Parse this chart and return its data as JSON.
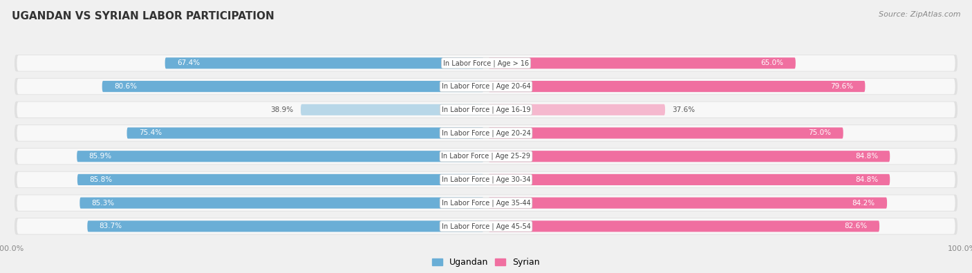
{
  "title": "UGANDAN VS SYRIAN LABOR PARTICIPATION",
  "source": "Source: ZipAtlas.com",
  "categories": [
    "In Labor Force | Age > 16",
    "In Labor Force | Age 20-64",
    "In Labor Force | Age 16-19",
    "In Labor Force | Age 20-24",
    "In Labor Force | Age 25-29",
    "In Labor Force | Age 30-34",
    "In Labor Force | Age 35-44",
    "In Labor Force | Age 45-54"
  ],
  "ugandan_values": [
    67.4,
    80.6,
    38.9,
    75.4,
    85.9,
    85.8,
    85.3,
    83.7
  ],
  "syrian_values": [
    65.0,
    79.6,
    37.6,
    75.0,
    84.8,
    84.8,
    84.2,
    82.6
  ],
  "ugandan_color_strong": "#6aaed6",
  "ugandan_color_light": "#b8d7e8",
  "syrian_color_strong": "#f06fa0",
  "syrian_color_light": "#f5b8ce",
  "row_bg_color": "#e8e8e8",
  "row_inner_bg": "#f5f5f5",
  "label_white": "#ffffff",
  "label_dark": "#555555",
  "legend_ugandan": "Ugandan",
  "legend_syrian": "Syrian",
  "max_value": 100.0,
  "threshold_light": 50.0,
  "bg_color": "#f0f0f0",
  "title_color": "#333333",
  "source_color": "#888888",
  "center_label_color": "#444444",
  "tick_color": "#888888"
}
